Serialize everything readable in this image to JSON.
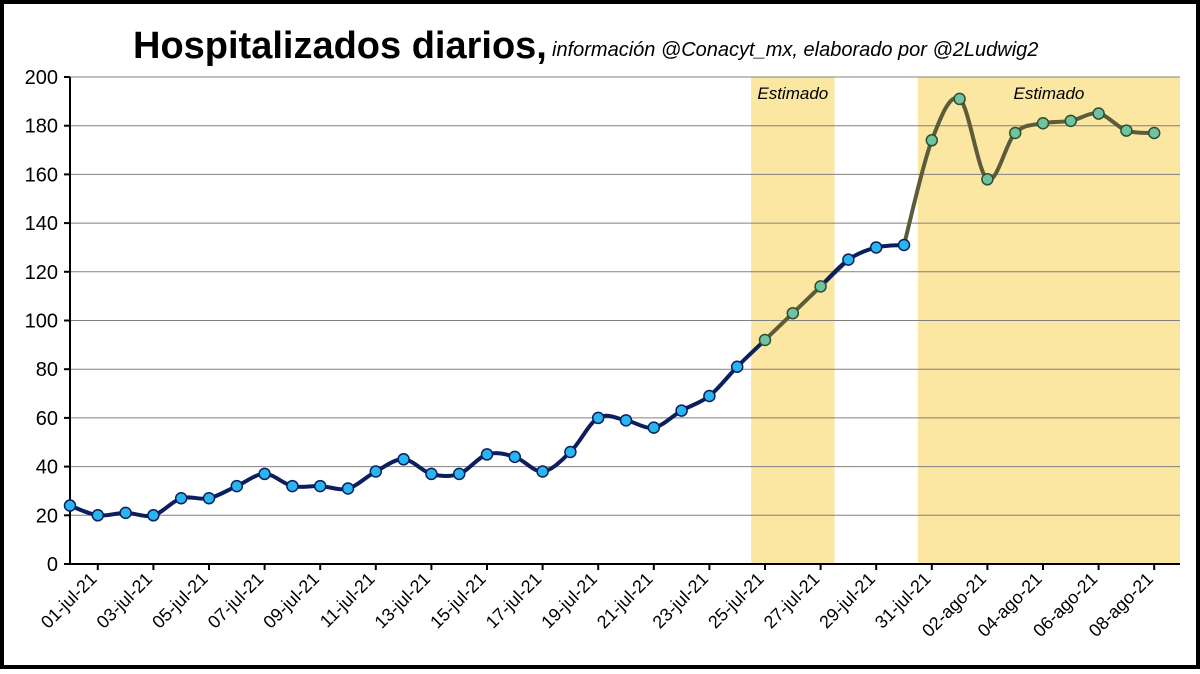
{
  "title": "Hospitalizados diarios,",
  "subtitle": "información @Conacyt_mx, elaborado por @2Ludwig2",
  "colors": {
    "observed_line": "#0b1f5e",
    "observed_marker": "#29b6f0",
    "estimated_line": "#5c5c3a",
    "estimated_marker": "#6fc3a0",
    "estimated_band": "#fbe7a1",
    "grid": "#808080"
  },
  "chart_data": {
    "type": "line",
    "title": "Hospitalizados diarios,",
    "subtitle": "información @Conacyt_mx, elaborado por @2Ludwig2",
    "xlabel": "",
    "ylabel": "",
    "ylim": [
      0,
      200
    ],
    "yticks": [
      0,
      20,
      40,
      60,
      80,
      100,
      120,
      140,
      160,
      180,
      200
    ],
    "grid": true,
    "legend": "none",
    "x": [
      "01-jul-21",
      "02-jul-21",
      "03-jul-21",
      "04-jul-21",
      "05-jul-21",
      "06-jul-21",
      "07-jul-21",
      "08-jul-21",
      "09-jul-21",
      "10-jul-21",
      "11-jul-21",
      "12-jul-21",
      "13-jul-21",
      "14-jul-21",
      "15-jul-21",
      "16-jul-21",
      "17-jul-21",
      "18-jul-21",
      "19-jul-21",
      "20-jul-21",
      "21-jul-21",
      "22-jul-21",
      "23-jul-21",
      "24-jul-21",
      "25-jul-21",
      "26-jul-21",
      "27-jul-21",
      "28-jul-21",
      "29-jul-21",
      "30-jul-21",
      "31-jul-21",
      "01-ago-21",
      "02-ago-21",
      "03-ago-21",
      "04-ago-21",
      "05-ago-21",
      "06-ago-21",
      "07-ago-21",
      "08-ago-21",
      "09-ago-21"
    ],
    "xtick_labels": [
      "01-jul-21",
      "03-jul-21",
      "05-jul-21",
      "07-jul-21",
      "09-jul-21",
      "11-jul-21",
      "13-jul-21",
      "15-jul-21",
      "17-jul-21",
      "19-jul-21",
      "21-jul-21",
      "23-jul-21",
      "25-jul-21",
      "27-jul-21",
      "29-jul-21",
      "31-jul-21",
      "02-ago-21",
      "04-ago-21",
      "06-ago-21",
      "08-ago-21"
    ],
    "values": [
      24,
      20,
      21,
      20,
      27,
      27,
      32,
      37,
      32,
      32,
      31,
      38,
      43,
      37,
      37,
      45,
      44,
      38,
      46,
      60,
      59,
      56,
      63,
      69,
      81,
      92,
      103,
      114,
      125,
      130,
      131,
      174,
      191,
      158,
      177,
      181,
      182,
      185,
      178,
      177
    ],
    "estimated_ranges": [
      {
        "label": "Estimado",
        "from": "26-jul-21",
        "to": "28-jul-21"
      },
      {
        "label": "Estimado",
        "from": "01-ago-21",
        "to": "09-ago-21"
      }
    ]
  }
}
